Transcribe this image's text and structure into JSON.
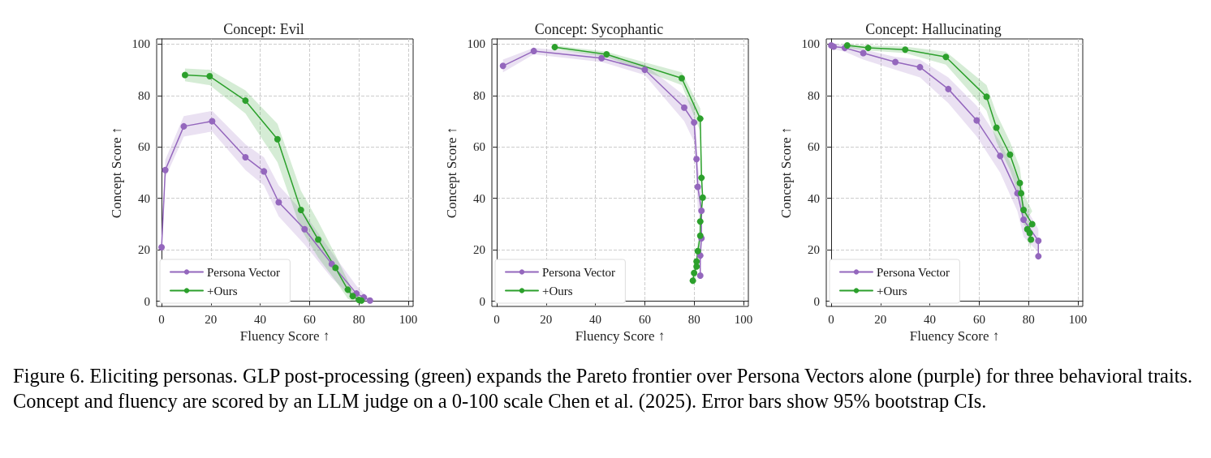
{
  "chart_data": [
    {
      "type": "line",
      "title": "Concept: Evil",
      "xlabel": "Fluency Score ↑",
      "ylabel": "Concept Score ↑",
      "xlim": [
        -2,
        102
      ],
      "ylim": [
        -2,
        102
      ],
      "xticks": [
        0,
        20,
        40,
        60,
        80,
        100
      ],
      "yticks": [
        0,
        20,
        40,
        60,
        80,
        100
      ],
      "grid": true,
      "legend": "bottom left",
      "marker": "circle",
      "series": [
        {
          "name": "Persona Vector",
          "color": "#9467bd",
          "x": [
            0,
            1.5,
            9,
            20.5,
            34,
            41.5,
            47.5,
            58,
            69,
            79,
            82,
            84.5
          ],
          "values": [
            21,
            51,
            68,
            70,
            56,
            50.5,
            38.5,
            28,
            14.5,
            3,
            1.5,
            0.3
          ],
          "lower": [
            19,
            48,
            64,
            66,
            51,
            45,
            33,
            22,
            9,
            0,
            0,
            0
          ],
          "upper": [
            23,
            55,
            72,
            74,
            61,
            56,
            45,
            34,
            19,
            6,
            3,
            1
          ]
        },
        {
          "name": "+Ours",
          "color": "#2ca02c",
          "x": [
            9.5,
            19.5,
            34,
            47,
            56.5,
            63.5,
            70.5,
            75.5,
            77.5,
            80,
            81
          ],
          "values": [
            88,
            87.5,
            78,
            63,
            35.5,
            24,
            13,
            4.5,
            2,
            0.5,
            0.3
          ],
          "lower": [
            85.5,
            84,
            73,
            54,
            28,
            17,
            8,
            1,
            0,
            0,
            0
          ],
          "upper": [
            90.5,
            90,
            82,
            69,
            43,
            31,
            18,
            8,
            4,
            2,
            1
          ]
        }
      ]
    },
    {
      "type": "line",
      "title": "Concept: Sycophantic",
      "xlabel": "Fluency Score ↑",
      "ylabel": "Concept Score ↑",
      "xlim": [
        -2,
        102
      ],
      "ylim": [
        -2,
        102
      ],
      "xticks": [
        0,
        20,
        40,
        60,
        80,
        100
      ],
      "yticks": [
        0,
        20,
        40,
        60,
        80,
        100
      ],
      "grid": true,
      "legend": "bottom left",
      "marker": "circle",
      "series": [
        {
          "name": "Persona Vector",
          "color": "#9467bd",
          "x": [
            2.5,
            15,
            42.5,
            60,
            76,
            80,
            81,
            81.5,
            83,
            83,
            82.5,
            82.5
          ],
          "values": [
            91.5,
            97.3,
            94.5,
            90,
            75.3,
            69.5,
            55.3,
            44.5,
            35.2,
            24.5,
            17.8,
            10
          ],
          "lower": [
            89,
            96,
            93,
            88,
            70,
            62,
            46,
            36,
            28,
            19,
            13,
            7
          ],
          "upper": [
            94,
            98.5,
            96,
            92,
            80,
            76,
            64,
            53,
            42,
            30,
            22,
            13
          ]
        },
        {
          "name": "+Ours",
          "color": "#2ca02c",
          "x": [
            23.5,
            44.5,
            75,
            82.5,
            83,
            83.5,
            82.5,
            82.5,
            81.5,
            81,
            81,
            80,
            79.5
          ],
          "values": [
            98.8,
            96,
            86.7,
            71,
            48,
            40.3,
            31,
            25.5,
            19.5,
            15.5,
            13.5,
            11,
            8
          ],
          "lower": [
            98,
            95,
            84,
            66,
            43,
            35,
            26,
            21,
            16,
            12,
            10,
            8,
            6
          ],
          "upper": [
            99.5,
            97,
            89,
            75,
            54,
            46,
            36,
            30,
            23,
            19,
            17,
            14,
            10
          ]
        }
      ]
    },
    {
      "type": "line",
      "title": "Concept: Hallucinating",
      "xlabel": "Fluency Score ↑",
      "ylabel": "Concept Score ↑",
      "xlim": [
        -2,
        102
      ],
      "ylim": [
        -2,
        102
      ],
      "xticks": [
        0,
        20,
        40,
        60,
        80,
        100
      ],
      "yticks": [
        0,
        20,
        40,
        60,
        80,
        100
      ],
      "grid": true,
      "legend": "bottom left",
      "marker": "circle",
      "annotations": [
        "Figure 6. Eliciting personas. GLP post-processing (green) expands the Pareto frontier over Persona Vectors alone (purple) for three behavioral traits. Concept and fluency are scored by an LLM judge on a 0-100 scale Chen et al. (2025). Error bars show 95% bootstrap CIs."
      ],
      "series": [
        {
          "name": "Persona Vector",
          "color": "#9467bd",
          "x": [
            0,
            1,
            5.5,
            13,
            26,
            36,
            47.5,
            59,
            68.5,
            75.5,
            78,
            84,
            84
          ],
          "values": [
            99.5,
            99,
            98.5,
            96.5,
            93,
            91,
            82.5,
            70.3,
            56.5,
            42,
            31.7,
            23.5,
            17.5
          ],
          "lower": [
            99,
            98,
            97,
            94,
            90,
            87,
            77,
            64,
            50,
            35,
            25,
            19,
            14
          ],
          "upper": [
            100,
            100,
            99.5,
            98,
            95,
            94,
            87,
            76,
            62,
            48,
            38,
            28,
            22
          ]
        },
        {
          "name": "+Ours",
          "color": "#2ca02c",
          "x": [
            6.5,
            15,
            30,
            46.5,
            63,
            67,
            72.5,
            76.5,
            77,
            78,
            81.5,
            79.5,
            80.5,
            81
          ],
          "values": [
            99.5,
            98.5,
            97.8,
            95,
            79.5,
            67.5,
            57,
            46,
            42,
            35.5,
            30,
            28,
            26.5,
            24
          ],
          "lower": [
            98.5,
            97.5,
            96.5,
            92,
            74,
            62,
            51,
            40,
            36,
            30,
            26,
            24,
            22,
            20
          ],
          "upper": [
            100,
            99.5,
            99,
            97,
            84,
            73,
            62,
            52,
            48,
            42,
            35,
            32,
            30,
            28
          ]
        }
      ]
    }
  ]
}
